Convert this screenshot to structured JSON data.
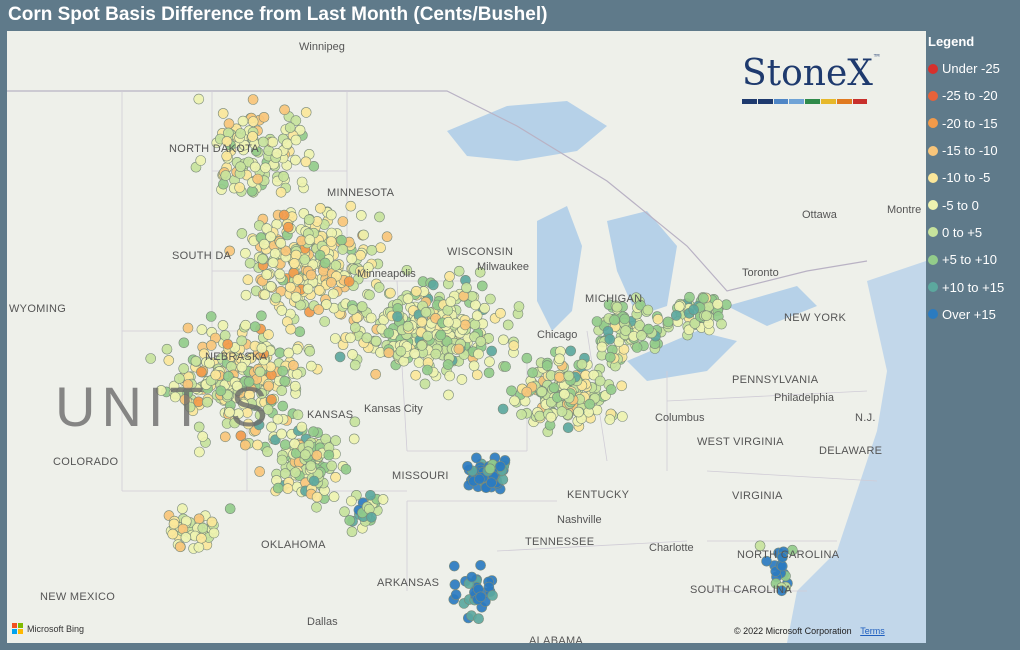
{
  "title": "Corn Spot Basis Difference from Last Month (Cents/Bushel)",
  "legend": {
    "title": "Legend",
    "items": [
      {
        "label": "Under -25",
        "color": "#d7302c"
      },
      {
        "label": "-25 to -20",
        "color": "#e8623a"
      },
      {
        "label": "-20 to -15",
        "color": "#f29a4a"
      },
      {
        "label": "-15 to -10",
        "color": "#f8c57a"
      },
      {
        "label": "-10 to -5",
        "color": "#fbe79a"
      },
      {
        "label": "-5 to 0",
        "color": "#eef3b0"
      },
      {
        "label": "0 to +5",
        "color": "#c7e39c"
      },
      {
        "label": "+5 to +10",
        "color": "#93cc8a"
      },
      {
        "label": "+10 to +15",
        "color": "#5ca89e"
      },
      {
        "label": "Over +15",
        "color": "#2b7bc0"
      }
    ]
  },
  "logo": {
    "text": "StoneX",
    "tm": "™"
  },
  "map": {
    "big_label": "UNIT    S",
    "states": [
      "NORTH DAKOTA",
      "MINNESOTA",
      "SOUTH DA",
      "WYOMING",
      "NEBRASKA",
      "COLORADO",
      "KANSAS",
      "MISSOURI",
      "OKLAHOMA",
      "ARKANSAS",
      "NEW MEXICO",
      "TENNESSEE",
      "KENTUCKY",
      "WEST VIRGINIA",
      "VIRGINIA",
      "NORTH CAROLINA",
      "SOUTH CAROLINA",
      "PENNSYLVANIA",
      "NEW YORK",
      "DELAWARE",
      "N.J.",
      "ALABAMA",
      "WISCONSIN",
      "MICHIGAN"
    ],
    "cities": [
      "Winnipeg",
      "Ottawa",
      "Montre",
      "Chicago",
      "Columbus",
      "Philadelphia",
      "Nashville",
      "Charlotte",
      "Dallas",
      "Toronto",
      "Kansas City",
      "Minneapolis",
      "Milwaukee"
    ],
    "attribution": {
      "bing": "Microsoft Bing",
      "copyright": "© 2022 Microsoft Corporation",
      "terms": "Terms"
    }
  }
}
